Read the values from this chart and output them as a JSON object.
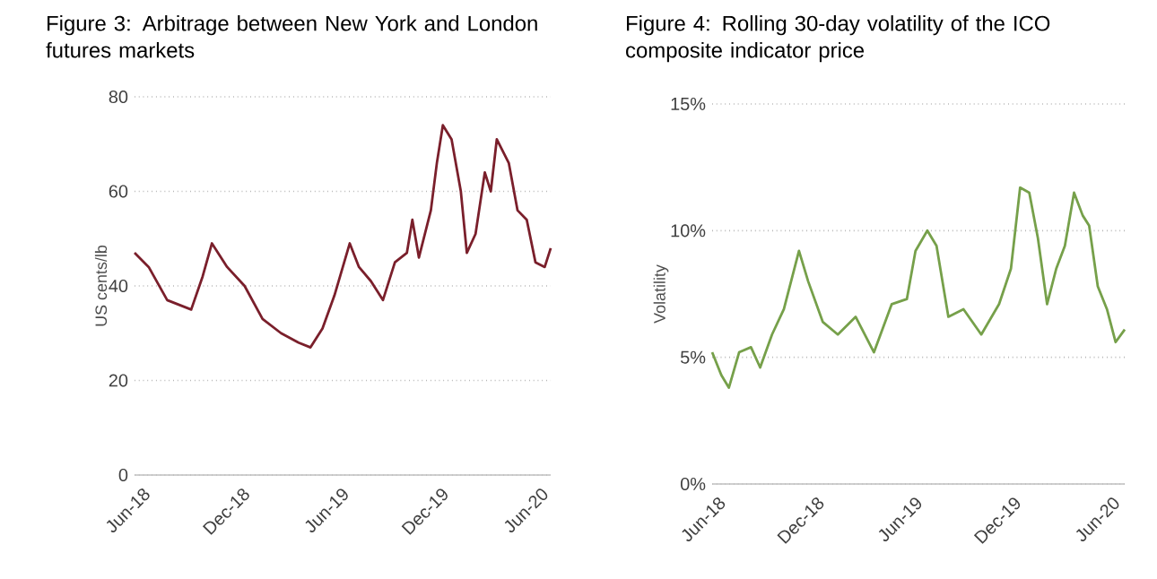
{
  "chart_data": [
    {
      "type": "line",
      "title": "Figure 3:  Arbitrage between New York and London futures markets",
      "ylabel": "US cents/lb",
      "color": "#7a1f2b",
      "grid": "y",
      "x": [
        "2018-05-22",
        "2018-06-17",
        "2018-07-21",
        "2018-09-03",
        "2018-09-24",
        "2018-10-11",
        "2018-11-08",
        "2018-12-10",
        "2019-01-12",
        "2019-02-15",
        "2019-03-19",
        "2019-04-10",
        "2019-05-02",
        "2019-05-24",
        "2019-06-21",
        "2019-07-08",
        "2019-07-30",
        "2019-08-21",
        "2019-09-12",
        "2019-10-04",
        "2019-10-14",
        "2019-10-26",
        "2019-11-17",
        "2019-11-28",
        "2019-12-09",
        "2019-12-25",
        "2020-01-11",
        "2020-01-22",
        "2020-02-07",
        "2020-02-24",
        "2020-03-06",
        "2020-03-17",
        "2020-04-08",
        "2020-04-24",
        "2020-05-11",
        "2020-05-27",
        "2020-06-13",
        "2020-06-24"
      ],
      "values": [
        47,
        44,
        37,
        35,
        42,
        49,
        44,
        40,
        33,
        30,
        28,
        27,
        31,
        38,
        49,
        44,
        41,
        37,
        45,
        47,
        54,
        46,
        56,
        66,
        74,
        71,
        60,
        47,
        51,
        64,
        60,
        71,
        66,
        56,
        54,
        45,
        44,
        48
      ],
      "xlim": [
        "2018-05-22",
        "2020-06-24"
      ],
      "ylim": [
        0,
        80
      ],
      "yticks": [
        0,
        20,
        40,
        60,
        80
      ],
      "xticks": [
        {
          "value": "2018-06-01",
          "label": "Jun-18"
        },
        {
          "value": "2018-12-01",
          "label": "Dec-18"
        },
        {
          "value": "2019-06-01",
          "label": "Jun-19"
        },
        {
          "value": "2019-12-01",
          "label": "Dec-19"
        },
        {
          "value": "2020-06-01",
          "label": "Jun-20"
        }
      ]
    },
    {
      "type": "line",
      "title": "Figure 4:  Rolling 30-day volatility of the ICO  composite indicator price",
      "ylabel": "Volatility",
      "color": "#76a04a",
      "grid": "y",
      "x": [
        "2018-05-26",
        "2018-06-12",
        "2018-06-26",
        "2018-07-15",
        "2018-08-06",
        "2018-08-23",
        "2018-09-14",
        "2018-10-06",
        "2018-10-23",
        "2018-11-03",
        "2018-11-20",
        "2018-12-17",
        "2019-01-14",
        "2019-02-16",
        "2019-03-22",
        "2019-04-24",
        "2019-05-22",
        "2019-06-07",
        "2019-06-29",
        "2019-07-16",
        "2019-08-07",
        "2019-09-04",
        "2019-10-07",
        "2019-11-09",
        "2019-12-01",
        "2019-12-18",
        "2020-01-04",
        "2020-01-20",
        "2020-02-06",
        "2020-02-23",
        "2020-03-10",
        "2020-03-27",
        "2020-04-12",
        "2020-04-24",
        "2020-05-10",
        "2020-05-27",
        "2020-06-12",
        "2020-06-29"
      ],
      "values": [
        5.2,
        4.3,
        3.8,
        5.2,
        5.4,
        4.6,
        5.9,
        6.9,
        8.3,
        9.2,
        8.0,
        6.4,
        5.9,
        6.6,
        5.2,
        7.1,
        7.3,
        9.2,
        10.0,
        9.4,
        6.6,
        6.9,
        5.9,
        7.1,
        8.5,
        11.7,
        11.5,
        9.7,
        7.1,
        8.5,
        9.4,
        11.5,
        10.6,
        10.2,
        7.8,
        6.9,
        5.6,
        6.1
      ],
      "xlim": [
        "2018-05-26",
        "2020-06-29"
      ],
      "ylim": [
        0,
        15
      ],
      "yticks": [
        {
          "value": 0,
          "label": "0%"
        },
        {
          "value": 5,
          "label": "5%"
        },
        {
          "value": 10,
          "label": "10%"
        },
        {
          "value": 15,
          "label": "15%"
        }
      ],
      "xticks": [
        {
          "value": "2018-06-01",
          "label": "Jun-18"
        },
        {
          "value": "2018-12-01",
          "label": "Dec-18"
        },
        {
          "value": "2019-06-01",
          "label": "Jun-19"
        },
        {
          "value": "2019-12-01",
          "label": "Dec-19"
        },
        {
          "value": "2020-06-01",
          "label": "Jun-20"
        }
      ]
    }
  ]
}
